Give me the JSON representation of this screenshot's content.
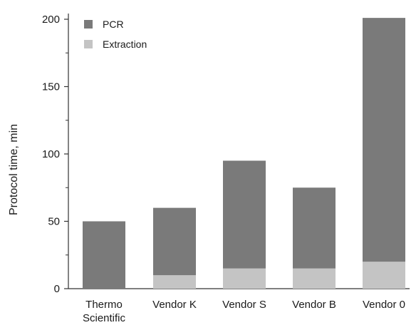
{
  "chart_data": {
    "type": "bar",
    "stacked": true,
    "categories": [
      [
        "Thermo",
        "Scientific"
      ],
      [
        "Vendor K"
      ],
      [
        "Vendor S"
      ],
      [
        "Vendor B"
      ],
      [
        "Vendor 0"
      ]
    ],
    "series": [
      {
        "name": "Extraction",
        "color": "#c4c4c4",
        "values": [
          0,
          10,
          15,
          15,
          20
        ]
      },
      {
        "name": "PCR",
        "color": "#7a7a7a",
        "values": [
          50,
          50,
          80,
          60,
          181
        ]
      }
    ],
    "legend_order": [
      "PCR",
      "Extraction"
    ],
    "legend_position": "top-left",
    "ylabel": "Protocol time, min",
    "xlabel": "",
    "ylim": [
      0,
      200
    ],
    "yticks": [
      0,
      50,
      100,
      150,
      200
    ],
    "grid": false
  }
}
